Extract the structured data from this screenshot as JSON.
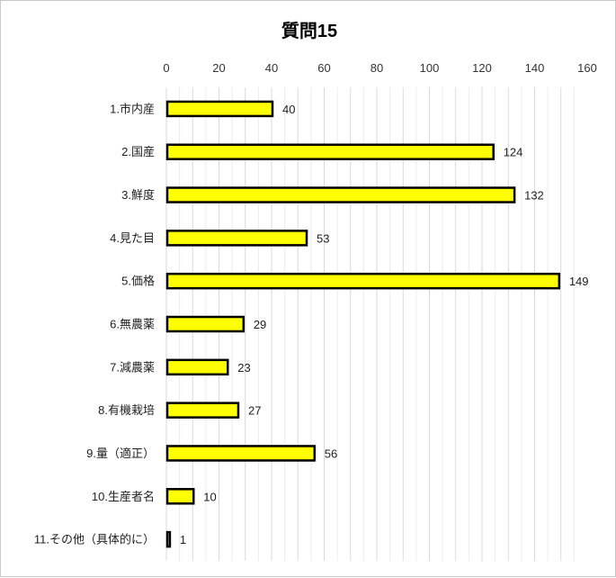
{
  "chart_data": {
    "type": "bar",
    "orientation": "horizontal",
    "title": "質問15",
    "categories": [
      "1.市内産",
      "2.国産",
      "3.鮮度",
      "4.見た目",
      "5.価格",
      "6.無農薬",
      "7.減農薬",
      "8.有機栽培",
      "9.量（適正）",
      "10.生産者名",
      "11.その他（具体的に）"
    ],
    "values": [
      40,
      124,
      132,
      53,
      149,
      29,
      23,
      27,
      56,
      10,
      1
    ],
    "xlim": [
      0,
      160
    ],
    "xticks": [
      0,
      20,
      40,
      60,
      80,
      100,
      120,
      140,
      160
    ],
    "x_axis_position": "top",
    "grid": true,
    "data_labels": true,
    "bar_color": "#ffff00",
    "bar_outline_color": "#000000",
    "legend": "none"
  }
}
